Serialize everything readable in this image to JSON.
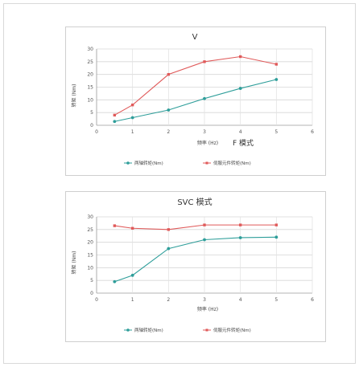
{
  "charts": [
    {
      "title": "V",
      "title_suffix": "F 模式",
      "xlabel": "频率 (Hz)",
      "ylabel": "转矩 (Nm)",
      "legend": [
        "两轴转矩(Nm)",
        "伺服元件转矩(Nm)"
      ],
      "colors": [
        "#2e9e9a",
        "#e05a5a"
      ]
    },
    {
      "title": "SVC 模式",
      "xlabel": "频率 (Hz)",
      "ylabel": "转矩 (Nm)",
      "legend": [
        "两轴转矩(Nm)",
        "伺服元件转矩(Nm)"
      ],
      "colors": [
        "#2e9e9a",
        "#e05a5a"
      ]
    }
  ],
  "chart_data": [
    {
      "type": "line",
      "title": "V",
      "xlabel": "频率 (Hz)",
      "ylabel": "转矩 (Nm)",
      "xlim": [
        0,
        6
      ],
      "ylim": [
        0,
        30
      ],
      "xticks": [
        0,
        1,
        2,
        3,
        4,
        5,
        6
      ],
      "yticks": [
        0,
        5,
        10,
        15,
        20,
        25,
        30
      ],
      "grid": true,
      "legend_position": "bottom",
      "x": [
        0.5,
        1,
        2,
        3,
        4,
        5
      ],
      "series": [
        {
          "name": "两轴转矩(Nm)",
          "values": [
            1.5,
            3,
            6,
            10.5,
            14.5,
            18
          ]
        },
        {
          "name": "伺服元件转矩(Nm)",
          "values": [
            4,
            8,
            20,
            25,
            27,
            24
          ]
        }
      ]
    },
    {
      "type": "line",
      "title": "SVC 模式",
      "xlabel": "频率 (Hz)",
      "ylabel": "转矩 (Nm)",
      "xlim": [
        0,
        6
      ],
      "ylim": [
        0,
        30
      ],
      "xticks": [
        0,
        1,
        2,
        3,
        4,
        5,
        6
      ],
      "yticks": [
        0,
        5,
        10,
        15,
        20,
        25,
        30
      ],
      "grid": true,
      "legend_position": "bottom",
      "x": [
        0.5,
        1,
        2,
        3,
        4,
        5
      ],
      "series": [
        {
          "name": "两轴转矩(Nm)",
          "values": [
            4.5,
            7,
            17.5,
            21,
            21.8,
            22
          ]
        },
        {
          "name": "伺服元件转矩(Nm)",
          "values": [
            26.5,
            25.5,
            25,
            26.8,
            26.8,
            26.8
          ]
        }
      ]
    }
  ]
}
